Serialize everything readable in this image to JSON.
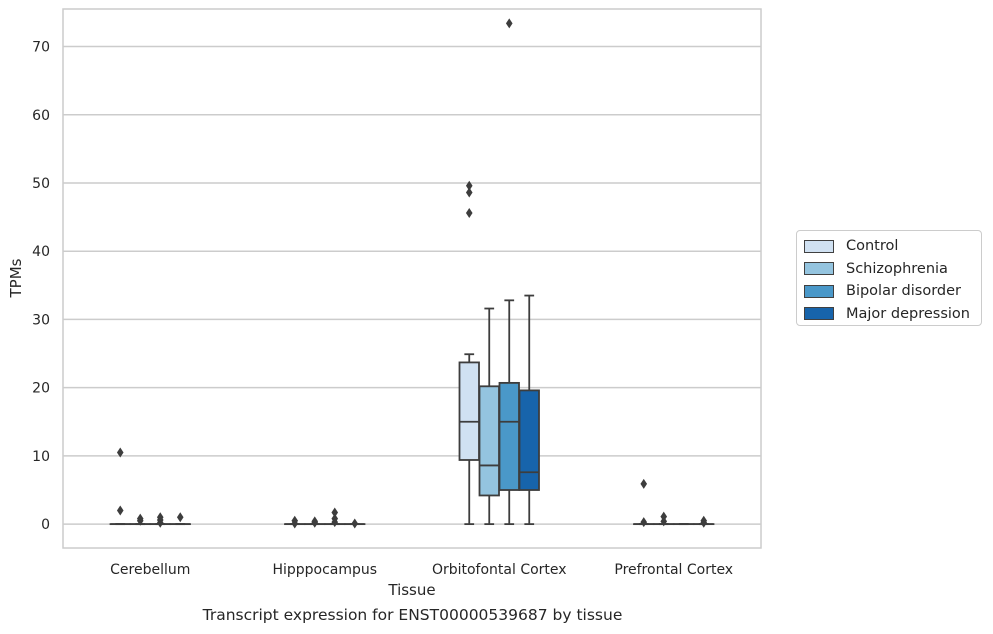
{
  "chart_data": {
    "type": "box",
    "xlabel": "Tissue",
    "ylabel": "TPMs",
    "caption": "Transcript expression for ENST00000539687 by tissue",
    "categories": [
      "Cerebellum",
      "Hipppocampus",
      "Orbitofontal Cortex",
      "Prefrontal Cortex"
    ],
    "ylim": [
      -3.5,
      75.5
    ],
    "yticks": [
      0,
      10,
      20,
      30,
      40,
      50,
      60,
      70
    ],
    "grid": "horizontal",
    "legend_position": "right",
    "series": [
      {
        "name": "Control",
        "color": "#d0e1f2",
        "boxes": [
          {
            "whislo": 0,
            "q1": 0,
            "median": 0,
            "q3": 0,
            "whishi": 0,
            "fliers": [
              2.0,
              10.5
            ]
          },
          {
            "whislo": 0,
            "q1": 0,
            "median": 0,
            "q3": 0,
            "whishi": 0,
            "fliers": [
              0.1,
              0.5
            ]
          },
          {
            "whislo": 0,
            "q1": 9.4,
            "median": 15.0,
            "q3": 23.7,
            "whishi": 24.9,
            "fliers": [
              45.6,
              48.6,
              49.6
            ]
          },
          {
            "whislo": 0,
            "q1": 0,
            "median": 0,
            "q3": 0,
            "whishi": 0,
            "fliers": [
              0.3,
              5.9
            ]
          }
        ]
      },
      {
        "name": "Schizophrenia",
        "color": "#94c4df",
        "boxes": [
          {
            "whislo": 0,
            "q1": 0,
            "median": 0,
            "q3": 0,
            "whishi": 0,
            "fliers": [
              0.5,
              0.8
            ]
          },
          {
            "whislo": 0,
            "q1": 0,
            "median": 0,
            "q3": 0,
            "whishi": 0,
            "fliers": [
              0.2,
              0.4
            ]
          },
          {
            "whislo": 0,
            "q1": 4.2,
            "median": 8.6,
            "q3": 20.2,
            "whishi": 31.6,
            "fliers": []
          },
          {
            "whislo": 0,
            "q1": 0,
            "median": 0,
            "q3": 0,
            "whishi": 0,
            "fliers": [
              0.4,
              1.1
            ]
          }
        ]
      },
      {
        "name": "Bipolar disorder",
        "color": "#4a98c9",
        "boxes": [
          {
            "whislo": 0,
            "q1": 0,
            "median": 0,
            "q3": 0,
            "whishi": 0,
            "fliers": [
              0.2,
              0.6,
              1.0
            ]
          },
          {
            "whislo": 0,
            "q1": 0,
            "median": 0,
            "q3": 0,
            "whishi": 0,
            "fliers": [
              0.3,
              0.8,
              1.7
            ]
          },
          {
            "whislo": 0,
            "q1": 5.0,
            "median": 15.0,
            "q3": 20.7,
            "whishi": 32.8,
            "fliers": [
              73.4
            ]
          },
          {
            "whislo": 0,
            "q1": 0,
            "median": 0,
            "q3": 0,
            "whishi": 0,
            "fliers": []
          }
        ]
      },
      {
        "name": "Major depression",
        "color": "#1764ab",
        "boxes": [
          {
            "whislo": 0,
            "q1": 0,
            "median": 0,
            "q3": 0,
            "whishi": 0,
            "fliers": [
              1.0
            ]
          },
          {
            "whislo": 0,
            "q1": 0,
            "median": 0,
            "q3": 0,
            "whishi": 0,
            "fliers": [
              0.1
            ]
          },
          {
            "whislo": 0,
            "q1": 5.0,
            "median": 7.6,
            "q3": 19.6,
            "whishi": 33.5,
            "fliers": []
          },
          {
            "whislo": 0,
            "q1": 0,
            "median": 0,
            "q3": 0,
            "whishi": 0,
            "fliers": [
              0.2,
              0.5
            ]
          }
        ]
      }
    ]
  }
}
